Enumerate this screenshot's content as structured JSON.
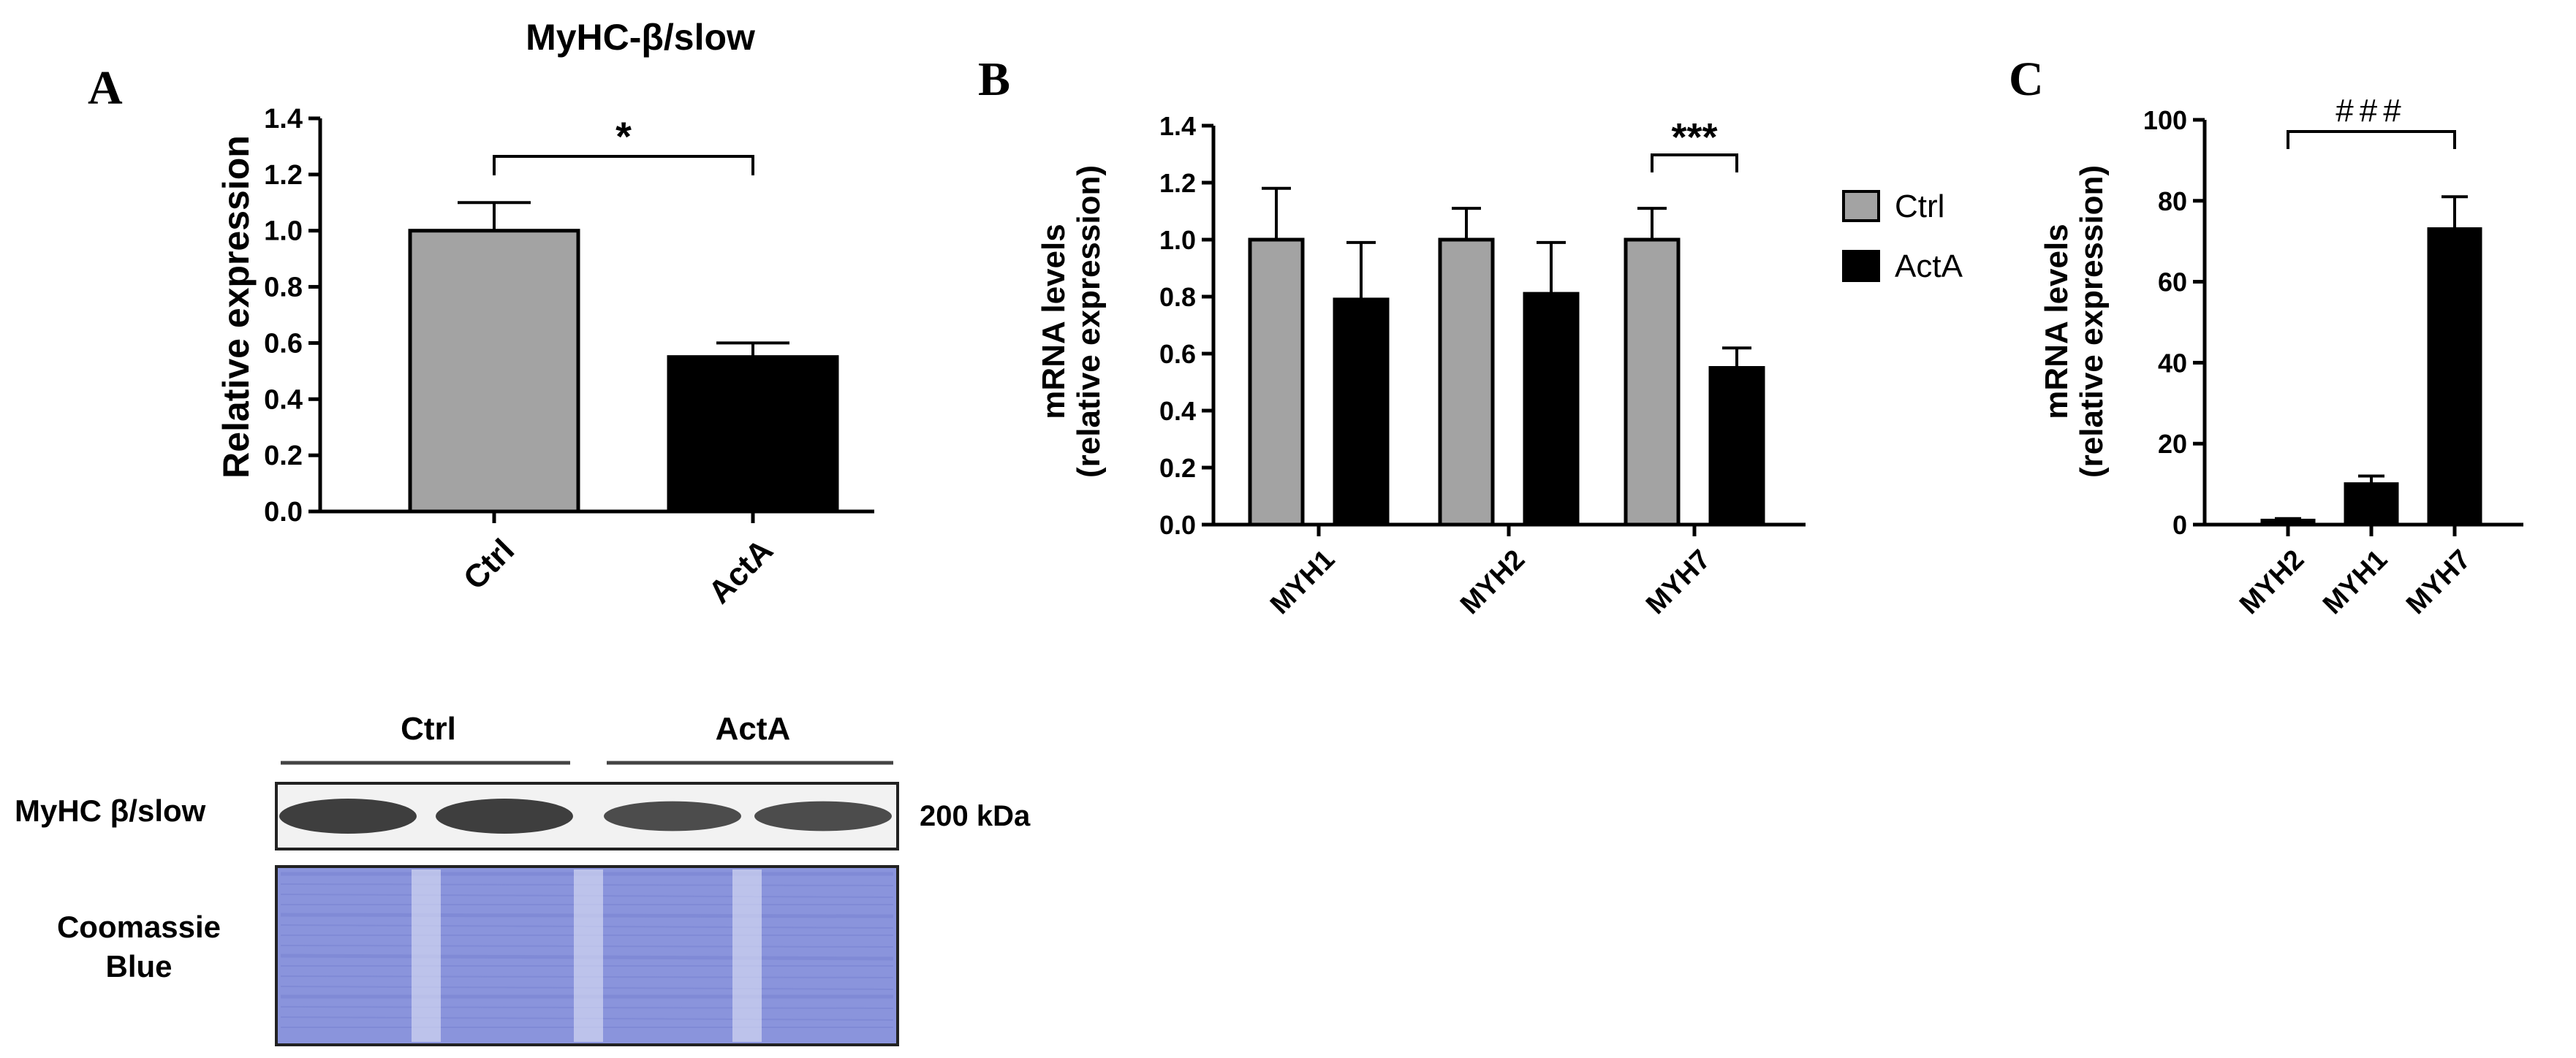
{
  "panel_labels": {
    "a": "A",
    "b": "B",
    "c": "C"
  },
  "colors": {
    "ctrl": "#a3a3a3",
    "acta": "#000000",
    "blot_bg": "#8a94dc",
    "band": "#2a2a2a"
  },
  "chart_data": [
    {
      "type": "bar",
      "title": "MyHC-β/slow",
      "xlabel": "",
      "ylabel": "Relative expression",
      "ylim": [
        0,
        1.4
      ],
      "yticks": [
        "0.0",
        "0.2",
        "0.4",
        "0.6",
        "0.8",
        "1.0",
        "1.2",
        "1.4"
      ],
      "categories": [
        "Ctrl",
        "ActA"
      ],
      "values": [
        1.0,
        0.55
      ],
      "errors": [
        0.1,
        0.05
      ],
      "colors": [
        "#a3a3a3",
        "#000000"
      ],
      "annotations": [
        {
          "text": "*",
          "between": [
            "Ctrl",
            "ActA"
          ]
        }
      ]
    },
    {
      "type": "bar",
      "title": "",
      "xlabel": "",
      "ylabel": "mRNA levels\n(relative expression)",
      "ylim": [
        0,
        1.4
      ],
      "yticks": [
        "0.0",
        "0.2",
        "0.4",
        "0.6",
        "0.8",
        "1.0",
        "1.2",
        "1.4"
      ],
      "categories": [
        "MYH1",
        "MYH2",
        "MYH7"
      ],
      "series": [
        {
          "name": "Ctrl",
          "values": [
            1.0,
            1.0,
            1.0
          ],
          "errors": [
            0.18,
            0.11,
            0.11
          ],
          "color": "#a3a3a3"
        },
        {
          "name": "ActA",
          "values": [
            0.79,
            0.81,
            0.55
          ],
          "errors": [
            0.2,
            0.18,
            0.07
          ],
          "color": "#000000"
        }
      ],
      "legend": "right",
      "annotations": [
        {
          "text": "***",
          "category": "MYH7"
        }
      ]
    },
    {
      "type": "bar",
      "title": "",
      "xlabel": "",
      "ylabel": "mRNA levels\n(relative expression)",
      "ylim": [
        0,
        100
      ],
      "yticks": [
        "0",
        "20",
        "40",
        "60",
        "80",
        "100"
      ],
      "categories": [
        "MYH2",
        "MYH1",
        "MYH7"
      ],
      "values": [
        1,
        10,
        73
      ],
      "errors": [
        0.5,
        2,
        8
      ],
      "colors": [
        "#000000",
        "#000000",
        "#000000"
      ],
      "annotations": [
        {
          "text": "###",
          "between": [
            "MYH2",
            "MYH7"
          ]
        }
      ]
    }
  ],
  "blot": {
    "groups": [
      "Ctrl",
      "ActA"
    ],
    "rows": [
      "MyHC β/slow",
      "Coomassie\nBlue"
    ],
    "size_label": "200 kDa"
  }
}
